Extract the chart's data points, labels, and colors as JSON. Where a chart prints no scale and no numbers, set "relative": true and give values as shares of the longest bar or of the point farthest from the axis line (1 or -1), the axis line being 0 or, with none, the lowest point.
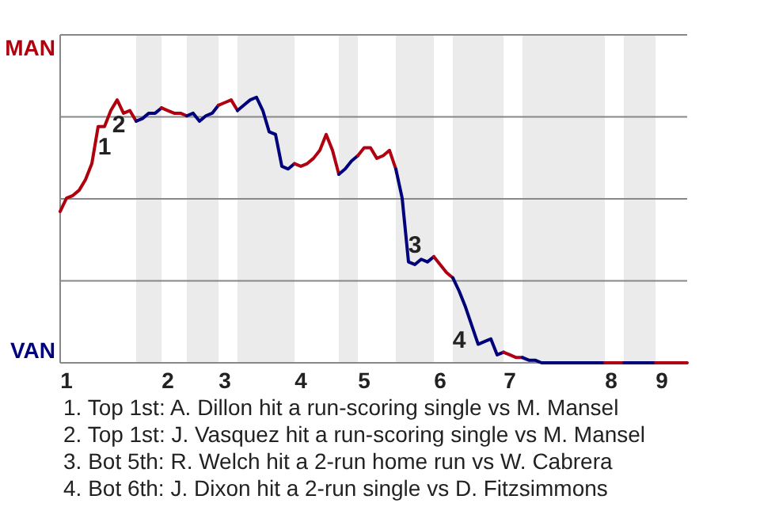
{
  "chart_data": {
    "type": "line",
    "relative": true,
    "categories": [
      null,
      "1",
      null,
      null,
      null,
      null,
      null,
      null,
      null,
      null,
      null,
      null,
      null,
      null,
      null,
      null,
      null,
      "2",
      null,
      null,
      null,
      null,
      null,
      null,
      null,
      null,
      "3",
      null,
      null,
      null,
      null,
      null,
      null,
      null,
      null,
      null,
      null,
      null,
      "4",
      null,
      null,
      null,
      null,
      null,
      null,
      null,
      null,
      null,
      "5",
      null,
      null,
      null,
      null,
      null,
      null,
      null,
      null,
      null,
      null,
      null,
      "6",
      null,
      null,
      null,
      null,
      null,
      null,
      null,
      null,
      null,
      null,
      "7",
      null,
      null,
      null,
      null,
      null,
      null,
      null,
      null,
      null,
      null,
      null,
      null,
      null,
      null,
      null,
      "8",
      null,
      null,
      null,
      null,
      null,
      null,
      null,
      "9",
      null,
      null,
      null,
      null
    ],
    "grid": "y",
    "marker": "none",
    "line_style": "solid",
    "series": [
      {
        "color": "#b0000e",
        "values": [
          0.57,
          0.62,
          0.63,
          0.65,
          0.69,
          0.75,
          0.89,
          0.89,
          0.95,
          0.99,
          0.94,
          0.95,
          0.91,
          null,
          null,
          null,
          null,
          null,
          null,
          null,
          null,
          null,
          null,
          null,
          null,
          null,
          null,
          null,
          null,
          null,
          null,
          null,
          null,
          null,
          null,
          null,
          null,
          null,
          null,
          null,
          null,
          null,
          null,
          null,
          null,
          null,
          null,
          null,
          null,
          null,
          null,
          null,
          null,
          null,
          null,
          null,
          null,
          null,
          null,
          null,
          null,
          null,
          null,
          null,
          null,
          null,
          null,
          null,
          null,
          null,
          null,
          null,
          null,
          null,
          null,
          null,
          null,
          null,
          null,
          null,
          null,
          null,
          null,
          null,
          null,
          null,
          null,
          null,
          null,
          null,
          null,
          null,
          null,
          null,
          null,
          null,
          null,
          null,
          null,
          null
        ]
      },
      {
        "color": "#00007f",
        "values": [
          null,
          null,
          null,
          null,
          null,
          null,
          null,
          null,
          null,
          null,
          null,
          null,
          0.91,
          0.92,
          0.94,
          0.94,
          0.96,
          null,
          null,
          null,
          null,
          null,
          null,
          null,
          null,
          null,
          null,
          null,
          null,
          null,
          null,
          null,
          null,
          null,
          null,
          null,
          null,
          null,
          null,
          null,
          null,
          null,
          null,
          null,
          null,
          null,
          null,
          null,
          null,
          null,
          null,
          null,
          null,
          null,
          null,
          null,
          null,
          null,
          null,
          null,
          null,
          null,
          null,
          null,
          null,
          null,
          null,
          null,
          null,
          null,
          null,
          null,
          null,
          null,
          null,
          null,
          null,
          null,
          null,
          null,
          null,
          null,
          null,
          null,
          null,
          null,
          null,
          null,
          null,
          null,
          null,
          null,
          null,
          null,
          null,
          null,
          null,
          null,
          null,
          null
        ]
      },
      {
        "color": "#b0000f",
        "values": [
          null,
          null,
          null,
          null,
          null,
          null,
          null,
          null,
          null,
          null,
          null,
          null,
          null,
          null,
          null,
          null,
          0.96,
          0.95,
          0.94,
          0.94,
          0.93,
          null,
          null,
          null,
          null,
          null,
          null,
          null,
          null,
          null,
          null,
          null,
          null,
          null,
          null,
          null,
          null,
          null,
          null,
          null,
          null,
          null,
          null,
          null,
          null,
          null,
          null,
          null,
          null,
          null,
          null,
          null,
          null,
          null,
          null,
          null,
          null,
          null,
          null,
          null,
          null,
          null,
          null,
          null,
          null,
          null,
          null,
          null,
          null,
          null,
          null,
          null,
          null,
          null,
          null,
          null,
          null,
          null,
          null,
          null,
          null,
          null,
          null,
          null,
          null,
          null,
          null,
          null,
          null,
          null,
          null,
          null,
          null,
          null,
          null,
          null,
          null,
          null,
          null,
          null
        ]
      },
      {
        "color": "#00007e",
        "values": [
          null,
          null,
          null,
          null,
          null,
          null,
          null,
          null,
          null,
          null,
          null,
          null,
          null,
          null,
          null,
          null,
          null,
          null,
          null,
          null,
          0.93,
          0.94,
          0.91,
          0.93,
          0.94,
          0.97,
          null,
          null,
          null,
          null,
          null,
          null,
          null,
          null,
          null,
          null,
          null,
          null,
          null,
          null,
          null,
          null,
          null,
          null,
          null,
          null,
          null,
          null,
          null,
          null,
          null,
          null,
          null,
          null,
          null,
          null,
          null,
          null,
          null,
          null,
          null,
          null,
          null,
          null,
          null,
          null,
          null,
          null,
          null,
          null,
          null,
          null,
          null,
          null,
          null,
          null,
          null,
          null,
          null,
          null,
          null,
          null,
          null,
          null,
          null,
          null,
          null,
          null,
          null,
          null,
          null,
          null,
          null,
          null,
          null,
          null,
          null,
          null,
          null,
          null
        ]
      },
      {
        "color": "#b00010",
        "values": [
          null,
          null,
          null,
          null,
          null,
          null,
          null,
          null,
          null,
          null,
          null,
          null,
          null,
          null,
          null,
          null,
          null,
          null,
          null,
          null,
          null,
          null,
          null,
          null,
          null,
          0.97,
          0.98,
          0.99,
          0.95,
          null,
          null,
          null,
          null,
          null,
          null,
          null,
          null,
          null,
          null,
          null,
          null,
          null,
          null,
          null,
          null,
          null,
          null,
          null,
          null,
          null,
          null,
          null,
          null,
          null,
          null,
          null,
          null,
          null,
          null,
          null,
          null,
          null,
          null,
          null,
          null,
          null,
          null,
          null,
          null,
          null,
          null,
          null,
          null,
          null,
          null,
          null,
          null,
          null,
          null,
          null,
          null,
          null,
          null,
          null,
          null,
          null,
          null,
          null,
          null,
          null,
          null,
          null,
          null,
          null,
          null,
          null,
          null,
          null,
          null,
          null
        ]
      },
      {
        "color": "#00007d",
        "values": [
          null,
          null,
          null,
          null,
          null,
          null,
          null,
          null,
          null,
          null,
          null,
          null,
          null,
          null,
          null,
          null,
          null,
          null,
          null,
          null,
          null,
          null,
          null,
          null,
          null,
          null,
          null,
          null,
          0.95,
          0.97,
          0.99,
          1,
          0.95,
          0.87,
          0.86,
          0.74,
          0.73,
          0.75,
          null,
          null,
          null,
          null,
          null,
          null,
          null,
          null,
          null,
          null,
          null,
          null,
          null,
          null,
          null,
          null,
          null,
          null,
          null,
          null,
          null,
          null,
          null,
          null,
          null,
          null,
          null,
          null,
          null,
          null,
          null,
          null,
          null,
          null,
          null,
          null,
          null,
          null,
          null,
          null,
          null,
          null,
          null,
          null,
          null,
          null,
          null,
          null,
          null,
          null,
          null,
          null,
          null,
          null,
          null,
          null,
          null,
          null,
          null,
          null,
          null,
          null
        ]
      },
      {
        "color": "#b00011",
        "values": [
          null,
          null,
          null,
          null,
          null,
          null,
          null,
          null,
          null,
          null,
          null,
          null,
          null,
          null,
          null,
          null,
          null,
          null,
          null,
          null,
          null,
          null,
          null,
          null,
          null,
          null,
          null,
          null,
          null,
          null,
          null,
          null,
          null,
          null,
          null,
          null,
          null,
          0.75,
          0.74,
          0.75,
          0.77,
          0.8,
          0.86,
          0.8,
          0.71,
          null,
          null,
          null,
          null,
          null,
          null,
          null,
          null,
          null,
          null,
          null,
          null,
          null,
          null,
          null,
          null,
          null,
          null,
          null,
          null,
          null,
          null,
          null,
          null,
          null,
          null,
          null,
          null,
          null,
          null,
          null,
          null,
          null,
          null,
          null,
          null,
          null,
          null,
          null,
          null,
          null,
          null,
          null,
          null,
          null,
          null,
          null,
          null,
          null,
          null,
          null,
          null,
          null,
          null,
          null
        ]
      },
      {
        "color": "#00007c",
        "values": [
          null,
          null,
          null,
          null,
          null,
          null,
          null,
          null,
          null,
          null,
          null,
          null,
          null,
          null,
          null,
          null,
          null,
          null,
          null,
          null,
          null,
          null,
          null,
          null,
          null,
          null,
          null,
          null,
          null,
          null,
          null,
          null,
          null,
          null,
          null,
          null,
          null,
          null,
          null,
          null,
          null,
          null,
          null,
          null,
          0.71,
          0.73,
          0.76,
          0.78,
          null,
          null,
          null,
          null,
          null,
          null,
          null,
          null,
          null,
          null,
          null,
          null,
          null,
          null,
          null,
          null,
          null,
          null,
          null,
          null,
          null,
          null,
          null,
          null,
          null,
          null,
          null,
          null,
          null,
          null,
          null,
          null,
          null,
          null,
          null,
          null,
          null,
          null,
          null,
          null,
          null,
          null,
          null,
          null,
          null,
          null,
          null,
          null,
          null,
          null,
          null,
          null
        ]
      },
      {
        "color": "#b00012",
        "values": [
          null,
          null,
          null,
          null,
          null,
          null,
          null,
          null,
          null,
          null,
          null,
          null,
          null,
          null,
          null,
          null,
          null,
          null,
          null,
          null,
          null,
          null,
          null,
          null,
          null,
          null,
          null,
          null,
          null,
          null,
          null,
          null,
          null,
          null,
          null,
          null,
          null,
          null,
          null,
          null,
          null,
          null,
          null,
          null,
          null,
          null,
          null,
          0.78,
          0.81,
          0.81,
          0.77,
          0.78,
          0.8,
          0.73,
          null,
          null,
          null,
          null,
          null,
          null,
          null,
          null,
          null,
          null,
          null,
          null,
          null,
          null,
          null,
          null,
          null,
          null,
          null,
          null,
          null,
          null,
          null,
          null,
          null,
          null,
          null,
          null,
          null,
          null,
          null,
          null,
          null,
          null,
          null,
          null,
          null,
          null,
          null,
          null,
          null,
          null,
          null,
          null,
          null,
          null
        ]
      },
      {
        "color": "#00007b",
        "values": [
          null,
          null,
          null,
          null,
          null,
          null,
          null,
          null,
          null,
          null,
          null,
          null,
          null,
          null,
          null,
          null,
          null,
          null,
          null,
          null,
          null,
          null,
          null,
          null,
          null,
          null,
          null,
          null,
          null,
          null,
          null,
          null,
          null,
          null,
          null,
          null,
          null,
          null,
          null,
          null,
          null,
          null,
          null,
          null,
          null,
          null,
          null,
          null,
          null,
          null,
          null,
          null,
          null,
          0.73,
          0.62,
          0.38,
          0.37,
          0.39,
          0.38,
          0.4,
          null,
          null,
          null,
          null,
          null,
          null,
          null,
          null,
          null,
          null,
          null,
          null,
          null,
          null,
          null,
          null,
          null,
          null,
          null,
          null,
          null,
          null,
          null,
          null,
          null,
          null,
          null,
          null,
          null,
          null,
          null,
          null,
          null,
          null,
          null,
          null,
          null,
          null,
          null,
          null
        ]
      },
      {
        "color": "#b00013",
        "values": [
          null,
          null,
          null,
          null,
          null,
          null,
          null,
          null,
          null,
          null,
          null,
          null,
          null,
          null,
          null,
          null,
          null,
          null,
          null,
          null,
          null,
          null,
          null,
          null,
          null,
          null,
          null,
          null,
          null,
          null,
          null,
          null,
          null,
          null,
          null,
          null,
          null,
          null,
          null,
          null,
          null,
          null,
          null,
          null,
          null,
          null,
          null,
          null,
          null,
          null,
          null,
          null,
          null,
          null,
          null,
          null,
          null,
          null,
          null,
          0.4,
          0.37,
          0.34,
          0.32,
          null,
          null,
          null,
          null,
          null,
          null,
          null,
          null,
          null,
          null,
          null,
          null,
          null,
          null,
          null,
          null,
          null,
          null,
          null,
          null,
          null,
          null,
          null,
          null,
          null,
          null,
          null,
          null,
          null,
          null,
          null,
          null,
          null,
          null,
          null,
          null,
          null
        ]
      },
      {
        "color": "#00007a",
        "values": [
          null,
          null,
          null,
          null,
          null,
          null,
          null,
          null,
          null,
          null,
          null,
          null,
          null,
          null,
          null,
          null,
          null,
          null,
          null,
          null,
          null,
          null,
          null,
          null,
          null,
          null,
          null,
          null,
          null,
          null,
          null,
          null,
          null,
          null,
          null,
          null,
          null,
          null,
          null,
          null,
          null,
          null,
          null,
          null,
          null,
          null,
          null,
          null,
          null,
          null,
          null,
          null,
          null,
          null,
          null,
          null,
          null,
          null,
          null,
          null,
          null,
          null,
          0.32,
          0.27,
          0.21,
          0.14,
          0.07,
          0.08,
          0.09,
          0.03,
          0.04,
          null,
          null,
          null,
          null,
          null,
          null,
          null,
          null,
          null,
          null,
          null,
          null,
          null,
          null,
          null,
          null,
          null,
          null,
          null,
          null,
          null,
          null,
          null,
          null,
          null,
          null,
          null,
          null,
          null
        ]
      },
      {
        "color": "#b00014",
        "values": [
          null,
          null,
          null,
          null,
          null,
          null,
          null,
          null,
          null,
          null,
          null,
          null,
          null,
          null,
          null,
          null,
          null,
          null,
          null,
          null,
          null,
          null,
          null,
          null,
          null,
          null,
          null,
          null,
          null,
          null,
          null,
          null,
          null,
          null,
          null,
          null,
          null,
          null,
          null,
          null,
          null,
          null,
          null,
          null,
          null,
          null,
          null,
          null,
          null,
          null,
          null,
          null,
          null,
          null,
          null,
          null,
          null,
          null,
          null,
          null,
          null,
          null,
          null,
          null,
          null,
          null,
          null,
          null,
          null,
          null,
          0.04,
          0.03,
          0.02,
          0.02,
          null,
          null,
          null,
          null,
          null,
          null,
          null,
          null,
          null,
          null,
          null,
          null,
          null,
          null,
          null,
          null,
          null,
          null,
          null,
          null,
          null,
          null,
          null,
          null,
          null,
          null
        ]
      },
      {
        "color": "#000079",
        "values": [
          null,
          null,
          null,
          null,
          null,
          null,
          null,
          null,
          null,
          null,
          null,
          null,
          null,
          null,
          null,
          null,
          null,
          null,
          null,
          null,
          null,
          null,
          null,
          null,
          null,
          null,
          null,
          null,
          null,
          null,
          null,
          null,
          null,
          null,
          null,
          null,
          null,
          null,
          null,
          null,
          null,
          null,
          null,
          null,
          null,
          null,
          null,
          null,
          null,
          null,
          null,
          null,
          null,
          null,
          null,
          null,
          null,
          null,
          null,
          null,
          null,
          null,
          null,
          null,
          null,
          null,
          null,
          null,
          null,
          null,
          null,
          null,
          null,
          0.02,
          0.01,
          0.01,
          0,
          0,
          0,
          0,
          0,
          0,
          0,
          0,
          0,
          0,
          0,
          null,
          null,
          null,
          null,
          null,
          null,
          null,
          null,
          null,
          null,
          null,
          null,
          null
        ]
      },
      {
        "color": "#b00015",
        "values": [
          null,
          null,
          null,
          null,
          null,
          null,
          null,
          null,
          null,
          null,
          null,
          null,
          null,
          null,
          null,
          null,
          null,
          null,
          null,
          null,
          null,
          null,
          null,
          null,
          null,
          null,
          null,
          null,
          null,
          null,
          null,
          null,
          null,
          null,
          null,
          null,
          null,
          null,
          null,
          null,
          null,
          null,
          null,
          null,
          null,
          null,
          null,
          null,
          null,
          null,
          null,
          null,
          null,
          null,
          null,
          null,
          null,
          null,
          null,
          null,
          null,
          null,
          null,
          null,
          null,
          null,
          null,
          null,
          null,
          null,
          null,
          null,
          null,
          null,
          null,
          null,
          null,
          null,
          null,
          null,
          null,
          null,
          null,
          null,
          null,
          null,
          0,
          0,
          0,
          0,
          null,
          null,
          null,
          null,
          null,
          null,
          null,
          null,
          null,
          null
        ]
      },
      {
        "color": "#000078",
        "values": [
          null,
          null,
          null,
          null,
          null,
          null,
          null,
          null,
          null,
          null,
          null,
          null,
          null,
          null,
          null,
          null,
          null,
          null,
          null,
          null,
          null,
          null,
          null,
          null,
          null,
          null,
          null,
          null,
          null,
          null,
          null,
          null,
          null,
          null,
          null,
          null,
          null,
          null,
          null,
          null,
          null,
          null,
          null,
          null,
          null,
          null,
          null,
          null,
          null,
          null,
          null,
          null,
          null,
          null,
          null,
          null,
          null,
          null,
          null,
          null,
          null,
          null,
          null,
          null,
          null,
          null,
          null,
          null,
          null,
          null,
          null,
          null,
          null,
          null,
          null,
          null,
          null,
          null,
          null,
          null,
          null,
          null,
          null,
          null,
          null,
          null,
          null,
          null,
          null,
          0,
          0,
          0,
          0,
          0,
          0,
          null,
          null,
          null,
          null,
          null
        ]
      },
      {
        "color": "#b00016",
        "values": [
          null,
          null,
          null,
          null,
          null,
          null,
          null,
          null,
          null,
          null,
          null,
          null,
          null,
          null,
          null,
          null,
          null,
          null,
          null,
          null,
          null,
          null,
          null,
          null,
          null,
          null,
          null,
          null,
          null,
          null,
          null,
          null,
          null,
          null,
          null,
          null,
          null,
          null,
          null,
          null,
          null,
          null,
          null,
          null,
          null,
          null,
          null,
          null,
          null,
          null,
          null,
          null,
          null,
          null,
          null,
          null,
          null,
          null,
          null,
          null,
          null,
          null,
          null,
          null,
          null,
          null,
          null,
          null,
          null,
          null,
          null,
          null,
          null,
          null,
          null,
          null,
          null,
          null,
          null,
          null,
          null,
          null,
          null,
          null,
          null,
          null,
          null,
          null,
          null,
          null,
          null,
          null,
          null,
          null,
          0,
          0,
          0,
          0,
          0,
          0
        ]
      }
    ],
    "annotations": [
      "MAN",
      "VAN",
      "1",
      "2",
      "3",
      "4",
      "1. Top 1st: A. Dillon hit a run-scoring single vs M. Mansel",
      "2. Top 1st: J. Vasquez hit a run-scoring single vs M. Mansel",
      "3. Bot 5th: R. Welch hit a 2-run home run vs W. Cabrera",
      "4. Bot 6th: J. Dixon hit a 2-run single vs D. Fitzsimmons"
    ]
  }
}
